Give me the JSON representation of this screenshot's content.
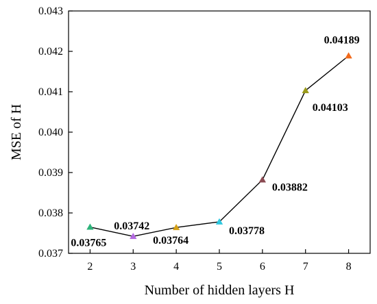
{
  "chart_data": {
    "type": "line",
    "title": "",
    "xlabel": "Number of hidden layers H",
    "ylabel": "MSE of  H",
    "xlim": [
      1.5,
      8.5
    ],
    "ylim": [
      0.037,
      0.043
    ],
    "x_ticks": [
      2,
      3,
      4,
      5,
      6,
      7,
      8
    ],
    "x_tick_labels": [
      "2",
      "3",
      "4",
      "5",
      "6",
      "7",
      "8"
    ],
    "y_ticks": [
      0.037,
      0.038,
      0.039,
      0.04,
      0.041,
      0.042,
      0.043
    ],
    "y_tick_labels": [
      "0.037",
      "0.038",
      "0.039",
      "0.040",
      "0.041",
      "0.042",
      "0.043"
    ],
    "grid": false,
    "series": [
      {
        "x": [
          2,
          3,
          4,
          5,
          6,
          7,
          8
        ],
        "y": [
          0.03765,
          0.03742,
          0.03764,
          0.03778,
          0.03882,
          0.04103,
          0.04189
        ],
        "line_color": "#000000",
        "marker": "triangle",
        "marker_colors": [
          "#2db37a",
          "#b36ae0",
          "#d4a017",
          "#2ec8e0",
          "#8b4a52",
          "#9a9a1a",
          "#f26a1b"
        ],
        "labels": [
          "0.03765",
          "0.03742",
          "0.03764",
          "0.03778",
          "0.03882",
          "0.04103",
          "0.04189"
        ]
      }
    ]
  }
}
